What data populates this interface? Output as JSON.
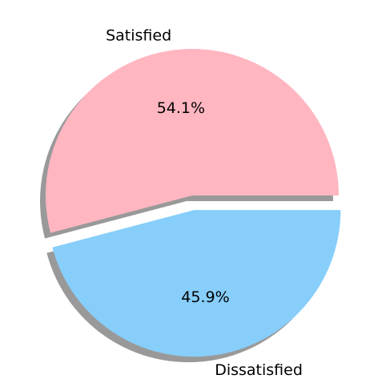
{
  "chart_data": {
    "type": "pie",
    "categories": [
      "Satisfied",
      "Dissatisfied"
    ],
    "values": [
      54.1,
      45.9
    ],
    "value_labels": [
      "54.1%",
      "45.9%"
    ],
    "colors": [
      "#ffb6c1",
      "#87cefa"
    ],
    "explode": [
      0,
      0.1
    ],
    "shadow": true,
    "start_angle_deg": 0,
    "title": "",
    "legend": false
  }
}
